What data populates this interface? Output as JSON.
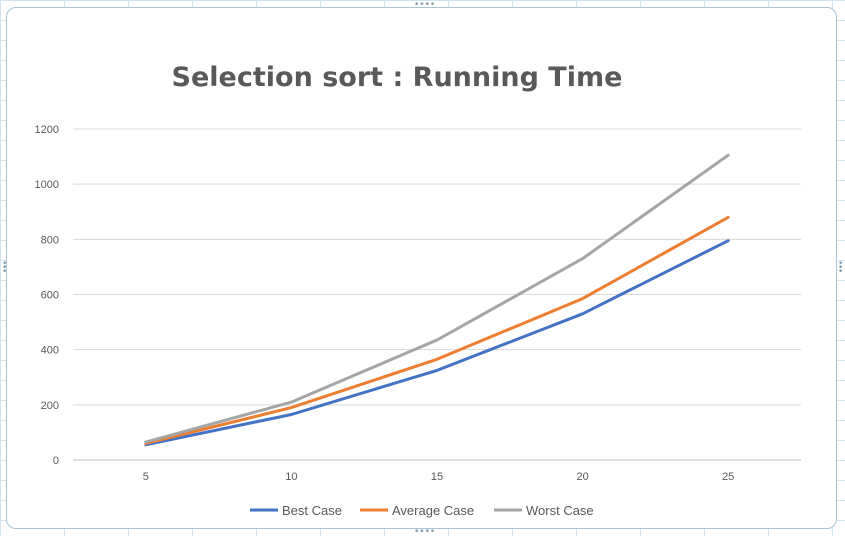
{
  "chart_data": {
    "type": "line",
    "title": "Selection sort : Running Time",
    "xlabel": "",
    "ylabel": "",
    "categories": [
      "5",
      "10",
      "15",
      "20",
      "25"
    ],
    "ylim": [
      0,
      1200
    ],
    "yticks": [
      0,
      200,
      400,
      600,
      800,
      1000,
      1200
    ],
    "grid": true,
    "legend": "bottom",
    "series": [
      {
        "name": "Best Case",
        "color": "#4472c4",
        "values": [
          55,
          165,
          325,
          530,
          795
        ]
      },
      {
        "name": "Average Case",
        "color": "#ed7d31",
        "values": [
          60,
          190,
          365,
          585,
          880
        ]
      },
      {
        "name": "Worst Case",
        "color": "#a5a5a5",
        "values": [
          65,
          210,
          435,
          730,
          1105
        ]
      }
    ]
  }
}
